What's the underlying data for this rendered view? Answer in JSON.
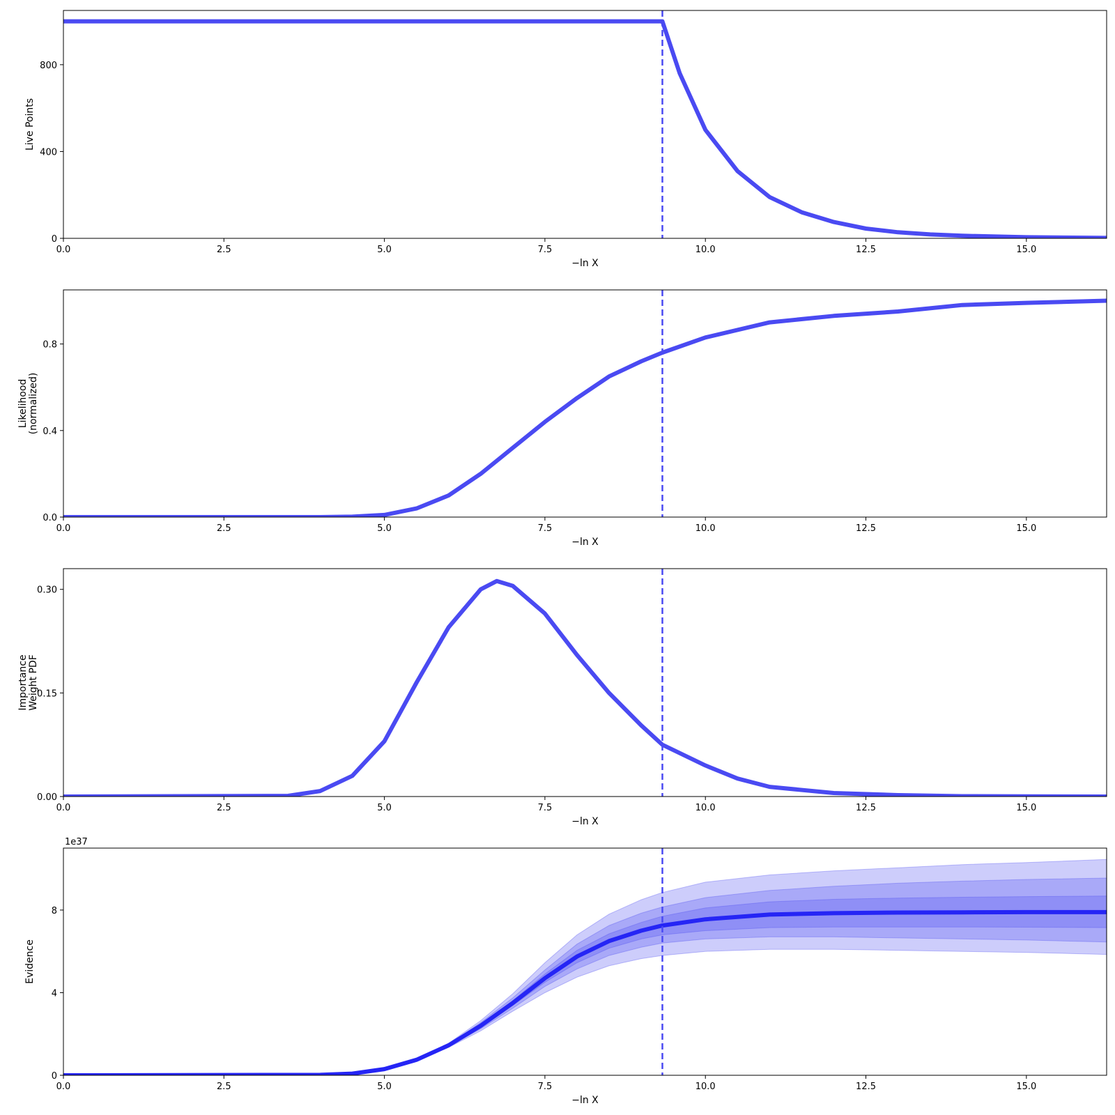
{
  "colors": {
    "line": "#4a4af2",
    "evidence_line": "#2525f5",
    "band": "#4d4df2",
    "frame": "#000000"
  },
  "chart_data": [
    {
      "type": "line",
      "id": "live-points",
      "xlabel": "−ln X",
      "ylabel": [
        "Live Points"
      ],
      "xlim": [
        0,
        16.25
      ],
      "ylim": [
        0,
        1050
      ],
      "xticks": [
        0,
        2.5,
        5,
        7.5,
        10,
        12.5,
        15
      ],
      "xtick_labels": [
        "0.0",
        "2.5",
        "5.0",
        "7.5",
        "10.0",
        "12.5",
        "15.0"
      ],
      "yticks": [
        0,
        400,
        800
      ],
      "ytick_labels": [
        "0",
        "400",
        "800"
      ],
      "vline_x": 9.33,
      "series": [
        {
          "x": [
            0,
            9.0,
            9.33,
            9.6,
            10.0,
            10.5,
            11.0,
            11.5,
            12.0,
            12.5,
            13.0,
            13.5,
            14.0,
            15.0,
            16.25
          ],
          "y": [
            1000,
            1000,
            1000,
            760,
            500,
            310,
            190,
            120,
            75,
            45,
            28,
            18,
            12,
            5,
            2
          ]
        }
      ]
    },
    {
      "type": "line",
      "id": "likelihood",
      "xlabel": "−ln X",
      "ylabel": [
        "Likelihood",
        "(normalized)"
      ],
      "xlim": [
        0,
        16.25
      ],
      "ylim": [
        0,
        1.05
      ],
      "xticks": [
        0,
        2.5,
        5,
        7.5,
        10,
        12.5,
        15
      ],
      "xtick_labels": [
        "0.0",
        "2.5",
        "5.0",
        "7.5",
        "10.0",
        "12.5",
        "15.0"
      ],
      "yticks": [
        0,
        0.4,
        0.8
      ],
      "ytick_labels": [
        "0.0",
        "0.4",
        "0.8"
      ],
      "vline_x": 9.33,
      "series": [
        {
          "x": [
            0,
            4.0,
            4.5,
            5.0,
            5.5,
            6.0,
            6.5,
            7.0,
            7.5,
            8.0,
            8.5,
            9.0,
            9.33,
            10.0,
            11.0,
            12.0,
            13.0,
            14.0,
            15.0,
            16.25
          ],
          "y": [
            0,
            0,
            0.002,
            0.01,
            0.04,
            0.1,
            0.2,
            0.32,
            0.44,
            0.55,
            0.65,
            0.72,
            0.76,
            0.83,
            0.9,
            0.93,
            0.95,
            0.98,
            0.99,
            1.0
          ]
        }
      ]
    },
    {
      "type": "line",
      "id": "importance-weight",
      "xlabel": "−ln X",
      "ylabel": [
        "Importance",
        "Weight PDF"
      ],
      "xlim": [
        0,
        16.25
      ],
      "ylim": [
        0,
        0.33
      ],
      "xticks": [
        0,
        2.5,
        5,
        7.5,
        10,
        12.5,
        15
      ],
      "xtick_labels": [
        "0.0",
        "2.5",
        "5.0",
        "7.5",
        "10.0",
        "12.5",
        "15.0"
      ],
      "yticks": [
        0,
        0.15,
        0.3
      ],
      "ytick_labels": [
        "0.00",
        "0.15",
        "0.30"
      ],
      "vline_x": 9.33,
      "series": [
        {
          "x": [
            0,
            3.5,
            4.0,
            4.5,
            5.0,
            5.5,
            6.0,
            6.5,
            6.75,
            7.0,
            7.5,
            8.0,
            8.5,
            9.0,
            9.33,
            10.0,
            10.5,
            11.0,
            12.0,
            13.0,
            14.0,
            16.25
          ],
          "y": [
            0,
            0.001,
            0.008,
            0.03,
            0.08,
            0.165,
            0.245,
            0.3,
            0.312,
            0.305,
            0.265,
            0.205,
            0.15,
            0.103,
            0.075,
            0.045,
            0.026,
            0.014,
            0.005,
            0.002,
            0.0005,
            0
          ]
        }
      ]
    },
    {
      "type": "area",
      "id": "evidence",
      "xlabel": "−ln X",
      "ylabel": [
        "Evidence"
      ],
      "offset_label": "1e37",
      "xlim": [
        0,
        16.25
      ],
      "ylim": [
        0,
        11
      ],
      "xticks": [
        0,
        2.5,
        5,
        7.5,
        10,
        12.5,
        15
      ],
      "xtick_labels": [
        "0.0",
        "2.5",
        "5.0",
        "7.5",
        "10.0",
        "12.5",
        "15.0"
      ],
      "yticks": [
        0,
        4,
        8
      ],
      "ytick_labels": [
        "0",
        "4",
        "8"
      ],
      "vline_x": 9.33,
      "x": [
        0,
        4.0,
        4.5,
        5.0,
        5.5,
        6.0,
        6.5,
        7.0,
        7.5,
        8.0,
        8.5,
        9.0,
        9.33,
        10.0,
        11.0,
        12.0,
        13.0,
        14.0,
        15.0,
        16.25
      ],
      "median": [
        0,
        0.02,
        0.08,
        0.3,
        0.75,
        1.45,
        2.4,
        3.5,
        4.7,
        5.75,
        6.5,
        7.0,
        7.25,
        7.55,
        7.78,
        7.85,
        7.88,
        7.89,
        7.9,
        7.9
      ],
      "bands": [
        {
          "lower": [
            0,
            0.02,
            0.08,
            0.28,
            0.7,
            1.35,
            2.15,
            3.1,
            4.0,
            4.75,
            5.3,
            5.65,
            5.8,
            6.0,
            6.1,
            6.1,
            6.05,
            6.0,
            5.95,
            5.85
          ],
          "upper": [
            0,
            0.02,
            0.08,
            0.32,
            0.8,
            1.55,
            2.65,
            3.95,
            5.45,
            6.8,
            7.8,
            8.5,
            8.85,
            9.35,
            9.7,
            9.9,
            10.05,
            10.2,
            10.3,
            10.45
          ]
        },
        {
          "lower": [
            0,
            0.02,
            0.08,
            0.29,
            0.72,
            1.4,
            2.25,
            3.25,
            4.3,
            5.15,
            5.8,
            6.2,
            6.4,
            6.6,
            6.7,
            6.7,
            6.65,
            6.6,
            6.55,
            6.45
          ],
          "upper": [
            0,
            0.02,
            0.08,
            0.31,
            0.78,
            1.5,
            2.55,
            3.75,
            5.1,
            6.35,
            7.25,
            7.85,
            8.15,
            8.6,
            8.95,
            9.15,
            9.3,
            9.4,
            9.48,
            9.55
          ]
        },
        {
          "lower": [
            0,
            0.02,
            0.08,
            0.3,
            0.74,
            1.42,
            2.32,
            3.38,
            4.5,
            5.45,
            6.15,
            6.6,
            6.8,
            7.0,
            7.15,
            7.18,
            7.18,
            7.18,
            7.17,
            7.15
          ],
          "upper": [
            0,
            0.02,
            0.08,
            0.3,
            0.76,
            1.48,
            2.48,
            3.62,
            4.9,
            6.05,
            6.85,
            7.4,
            7.7,
            8.1,
            8.4,
            8.52,
            8.58,
            8.62,
            8.65,
            8.68
          ]
        }
      ]
    }
  ]
}
